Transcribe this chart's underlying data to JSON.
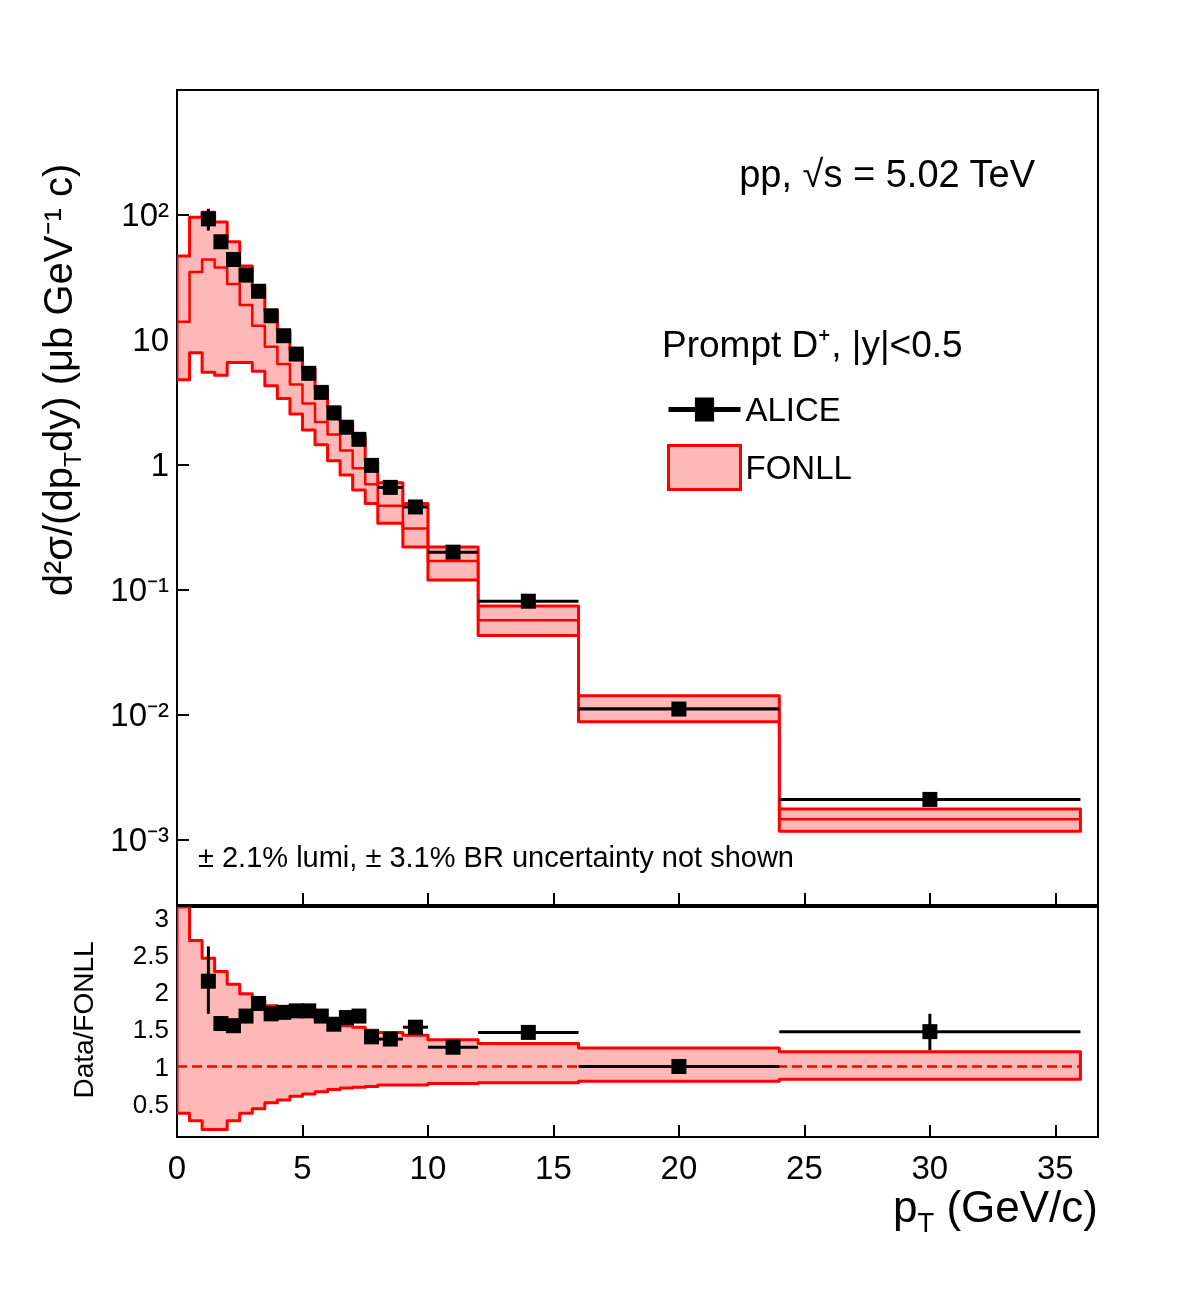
{
  "chart_data": [
    {
      "type": "scatter",
      "ylabel": "d²σ/(dp$_{T}$dy) (μb GeV⁻¹ c)",
      "legend_title": "Prompt D⁺, |y|<0.5",
      "legend": "right",
      "log": "y",
      "tick_labels": "y",
      "annotations": [
        "pp, √s = 5.02 TeV",
        "± 2.1% lumi, ± 3.1% BR uncertainty not shown"
      ],
      "xlim": [
        0,
        36.7
      ],
      "xticks": [
        0,
        5,
        10,
        15,
        20,
        25,
        30,
        35
      ],
      "ylim": [
        0.0003,
        1000
      ],
      "yticks": [
        {
          "value": 0.001,
          "label": "10⁻³"
        },
        {
          "value": 0.01,
          "label": "10⁻²"
        },
        {
          "value": 0.1,
          "label": "10⁻¹"
        },
        1,
        10,
        {
          "value": 100,
          "label": "10²"
        }
      ],
      "series": [
        {
          "name": "ALICE",
          "marker": "square",
          "color": "#000000",
          "x": [
            1.25,
            1.75,
            2.25,
            2.75,
            3.25,
            3.75,
            4.25,
            4.75,
            5.25,
            5.75,
            6.25,
            6.75,
            7.25,
            7.75,
            8.5,
            9.5,
            11,
            14,
            20,
            30
          ],
          "values": [
            93,
            61,
            44,
            33,
            24.5,
            15.6,
            10.8,
            7.7,
            5.4,
            3.8,
            2.6,
            2.0,
            1.6,
            0.99,
            0.66,
            0.46,
            0.2,
            0.081,
            0.0111,
            0.0021
          ],
          "xerrors": [
            0.25,
            0.25,
            0.25,
            0.25,
            0.25,
            0.25,
            0.25,
            0.25,
            0.25,
            0.25,
            0.25,
            0.25,
            0.25,
            0.25,
            0.5,
            0.5,
            1,
            2,
            4,
            6
          ],
          "errors": [
            [
              75,
              112
            ],
            null,
            null,
            null,
            null,
            null,
            null,
            null,
            null,
            null,
            null,
            null,
            null,
            null,
            null,
            null,
            null,
            null,
            null,
            [
              0.0019,
              0.0024
            ]
          ]
        },
        {
          "name": "FONLL",
          "type": "step",
          "marker": "none",
          "color": "#ff0000",
          "line_style": "solid",
          "x": [
            0,
            0.5,
            1,
            1.5,
            2,
            2.5,
            3,
            3.5,
            4,
            4.5,
            5,
            5.5,
            6,
            6.5,
            7,
            7.5,
            8,
            9,
            10,
            12,
            16,
            24,
            36
          ],
          "values": [
            14,
            35,
            44,
            38,
            28,
            19,
            13,
            8.8,
            6.4,
            4.4,
            3.1,
            2.2,
            1.75,
            1.3,
            0.94,
            0.7,
            0.47,
            0.31,
            0.17,
            0.057,
            0.0112,
            0.00146,
            0.00146
          ],
          "lower": [
            4.8,
            7.9,
            5.5,
            5.2,
            6.6,
            6.6,
            5.6,
            4.3,
            3.4,
            2.55,
            1.9,
            1.45,
            1.08,
            0.83,
            0.63,
            0.49,
            0.34,
            0.22,
            0.12,
            0.043,
            0.0088,
            0.00117,
            0.00117
          ],
          "upper": [
            47,
            96,
            105,
            88,
            61,
            39,
            27,
            17,
            11.8,
            8.3,
            5.9,
            4.1,
            2.9,
            2.2,
            1.66,
            1.07,
            0.72,
            0.49,
            0.22,
            0.074,
            0.0142,
            0.00176,
            0.00176
          ]
        }
      ]
    },
    {
      "type": "scatter",
      "xlabel": "p$_{T}$ (GeV/c)",
      "ylabel": "Data/FONLL",
      "xlim": [
        0,
        36.7
      ],
      "xticks": [
        0,
        5,
        10,
        15,
        20,
        25,
        30,
        35
      ],
      "ylim": [
        0.05,
        3.15
      ],
      "yticks": [
        0.5,
        1,
        1.5,
        2,
        2.5,
        3
      ],
      "series": [
        {
          "type": "step",
          "marker": "none",
          "color": "#ff0000",
          "line_style": "dashed",
          "x": [
            0,
            0.5,
            1,
            1.5,
            2,
            2.5,
            3,
            3.5,
            4,
            4.5,
            5,
            5.5,
            6,
            6.5,
            7,
            7.5,
            8,
            9,
            10,
            12,
            16,
            24,
            36
          ],
          "values": [
            1,
            1,
            1,
            1,
            1,
            1,
            1,
            1,
            1,
            1,
            1,
            1,
            1,
            1,
            1,
            1,
            1,
            1,
            1,
            1,
            1,
            1,
            1
          ],
          "lower": [
            0.37,
            0.27,
            0.15,
            0.15,
            0.27,
            0.37,
            0.43,
            0.51,
            0.55,
            0.6,
            0.63,
            0.66,
            0.69,
            0.71,
            0.72,
            0.73,
            0.75,
            0.75,
            0.77,
            0.78,
            0.8,
            0.83,
            0.83
          ],
          "upper": [
            3.15,
            2.7,
            2.46,
            2.28,
            2.11,
            1.98,
            1.89,
            1.82,
            1.77,
            1.73,
            1.68,
            1.64,
            1.59,
            1.55,
            1.53,
            1.49,
            1.46,
            1.42,
            1.36,
            1.31,
            1.25,
            1.2,
            1.2
          ]
        },
        {
          "marker": "square",
          "color": "#000000",
          "x": [
            1.25,
            1.75,
            2.25,
            2.75,
            3.25,
            3.75,
            4.25,
            4.75,
            5.25,
            5.75,
            6.25,
            6.75,
            7.25,
            7.75,
            8.5,
            9.5,
            11,
            14,
            20,
            30
          ],
          "values": [
            2.15,
            1.58,
            1.55,
            1.68,
            1.85,
            1.71,
            1.73,
            1.75,
            1.75,
            1.68,
            1.57,
            1.66,
            1.68,
            1.4,
            1.37,
            1.53,
            1.26,
            1.46,
            1.0,
            1.47
          ],
          "xerrors": [
            0.25,
            0.25,
            0.25,
            0.25,
            0.25,
            0.25,
            0.25,
            0.25,
            0.25,
            0.25,
            0.25,
            0.25,
            0.25,
            0.25,
            0.5,
            0.5,
            1,
            2,
            4,
            6
          ],
          "errors": [
            [
              1.71,
              2.62
            ],
            null,
            null,
            null,
            null,
            null,
            null,
            null,
            null,
            null,
            null,
            null,
            null,
            null,
            null,
            null,
            null,
            null,
            null,
            [
              1.22,
              1.71
            ]
          ]
        }
      ]
    }
  ]
}
